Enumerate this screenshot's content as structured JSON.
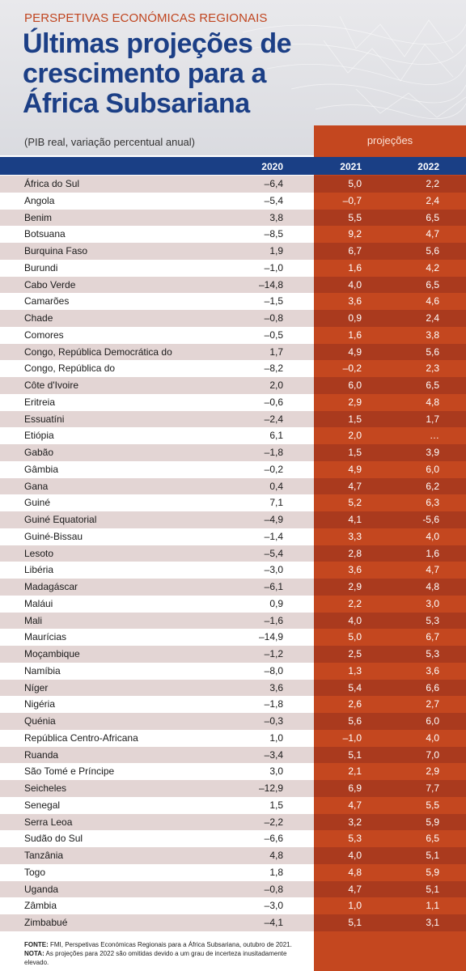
{
  "header": {
    "kicker": "PERSPETIVAS ECONÓMICAS REGIONAIS",
    "title": "Últimas projeções de crescimento para a África Subsariana",
    "subtitle": "(PIB real, variação percentual anual)",
    "projections_label": "projeções"
  },
  "colors": {
    "title_blue": "#1c3f86",
    "kicker_orange": "#c0451f",
    "header_bar": "#1a3f85",
    "projection_orange": "#c4471f",
    "projection_orange_dark": "#aa3a1e",
    "row_stripe": "#e3d5d4"
  },
  "chart_data": {
    "type": "table",
    "title": "Últimas projeções de crescimento para a África Subsariana",
    "subtitle": "(PIB real, variação percentual anual)",
    "columns": [
      "2020",
      "2021",
      "2022"
    ],
    "projection_columns": [
      "2021",
      "2022"
    ],
    "rows": [
      {
        "country": "África do Sul",
        "v2020": "–6,4",
        "v2021": "5,0",
        "v2022": "2,2"
      },
      {
        "country": "Angola",
        "v2020": "–5,4",
        "v2021": "–0,7",
        "v2022": "2,4"
      },
      {
        "country": "Benim",
        "v2020": "3,8",
        "v2021": "5,5",
        "v2022": "6,5"
      },
      {
        "country": "Botsuana",
        "v2020": "–8,5",
        "v2021": "9,2",
        "v2022": "4,7"
      },
      {
        "country": "Burquina Faso",
        "v2020": "1,9",
        "v2021": "6,7",
        "v2022": "5,6"
      },
      {
        "country": "Burundi",
        "v2020": "–1,0",
        "v2021": "1,6",
        "v2022": "4,2"
      },
      {
        "country": "Cabo Verde",
        "v2020": "–14,8",
        "v2021": "4,0",
        "v2022": "6,5"
      },
      {
        "country": "Camarões",
        "v2020": "–1,5",
        "v2021": "3,6",
        "v2022": "4,6"
      },
      {
        "country": "Chade",
        "v2020": "–0,8",
        "v2021": "0,9",
        "v2022": "2,4"
      },
      {
        "country": "Comores",
        "v2020": "–0,5",
        "v2021": "1,6",
        "v2022": "3,8"
      },
      {
        "country": "Congo, República Democrática do",
        "v2020": "1,7",
        "v2021": "4,9",
        "v2022": "5,6"
      },
      {
        "country": "Congo, República do",
        "v2020": "–8,2",
        "v2021": "–0,2",
        "v2022": "2,3"
      },
      {
        "country": "Côte d'Ivoire",
        "v2020": "2,0",
        "v2021": "6,0",
        "v2022": "6,5"
      },
      {
        "country": "Eritreia",
        "v2020": "–0,6",
        "v2021": "2,9",
        "v2022": "4,8"
      },
      {
        "country": "Essuatíni",
        "v2020": "–2,4",
        "v2021": "1,5",
        "v2022": "1,7"
      },
      {
        "country": "Etiópia",
        "v2020": "6,1",
        "v2021": "2,0",
        "v2022": "…"
      },
      {
        "country": "Gabão",
        "v2020": "–1,8",
        "v2021": "1,5",
        "v2022": "3,9"
      },
      {
        "country": "Gâmbia",
        "v2020": "–0,2",
        "v2021": "4,9",
        "v2022": "6,0"
      },
      {
        "country": "Gana",
        "v2020": "0,4",
        "v2021": "4,7",
        "v2022": "6,2"
      },
      {
        "country": "Guiné",
        "v2020": "7,1",
        "v2021": "5,2",
        "v2022": "6,3"
      },
      {
        "country": "Guiné Equatorial",
        "v2020": "–4,9",
        "v2021": "4,1",
        "v2022": "-5,6"
      },
      {
        "country": "Guiné-Bissau",
        "v2020": "–1,4",
        "v2021": "3,3",
        "v2022": "4,0"
      },
      {
        "country": "Lesoto",
        "v2020": "–5,4",
        "v2021": "2,8",
        "v2022": "1,6"
      },
      {
        "country": "Libéria",
        "v2020": "–3,0",
        "v2021": "3,6",
        "v2022": "4,7"
      },
      {
        "country": "Madagáscar",
        "v2020": "–6,1",
        "v2021": "2,9",
        "v2022": "4,8"
      },
      {
        "country": "Maláui",
        "v2020": "0,9",
        "v2021": "2,2",
        "v2022": "3,0"
      },
      {
        "country": "Mali",
        "v2020": "–1,6",
        "v2021": "4,0",
        "v2022": "5,3"
      },
      {
        "country": "Maurícias",
        "v2020": "–14,9",
        "v2021": "5,0",
        "v2022": "6,7"
      },
      {
        "country": "Moçambique",
        "v2020": "–1,2",
        "v2021": "2,5",
        "v2022": "5,3"
      },
      {
        "country": "Namíbia",
        "v2020": "–8,0",
        "v2021": "1,3",
        "v2022": "3,6"
      },
      {
        "country": "Níger",
        "v2020": "3,6",
        "v2021": "5,4",
        "v2022": "6,6"
      },
      {
        "country": "Nigéria",
        "v2020": "–1,8",
        "v2021": "2,6",
        "v2022": "2,7"
      },
      {
        "country": "Quénia",
        "v2020": "–0,3",
        "v2021": "5,6",
        "v2022": "6,0"
      },
      {
        "country": "República Centro-Africana",
        "v2020": "1,0",
        "v2021": "–1,0",
        "v2022": "4,0"
      },
      {
        "country": "Ruanda",
        "v2020": "–3,4",
        "v2021": "5,1",
        "v2022": "7,0"
      },
      {
        "country": "São Tomé e Príncipe",
        "v2020": "3,0",
        "v2021": "2,1",
        "v2022": "2,9"
      },
      {
        "country": "Seicheles",
        "v2020": "–12,9",
        "v2021": "6,9",
        "v2022": "7,7"
      },
      {
        "country": "Senegal",
        "v2020": "1,5",
        "v2021": "4,7",
        "v2022": "5,5"
      },
      {
        "country": "Serra Leoa",
        "v2020": "–2,2",
        "v2021": "3,2",
        "v2022": "5,9"
      },
      {
        "country": "Sudão do Sul",
        "v2020": "–6,6",
        "v2021": "5,3",
        "v2022": "6,5"
      },
      {
        "country": "Tanzânia",
        "v2020": "4,8",
        "v2021": "4,0",
        "v2022": "5,1"
      },
      {
        "country": "Togo",
        "v2020": "1,8",
        "v2021": "4,8",
        "v2022": "5,9"
      },
      {
        "country": "Uganda",
        "v2020": "–0,8",
        "v2021": "4,7",
        "v2022": "5,1"
      },
      {
        "country": "Zâmbia",
        "v2020": "–3,0",
        "v2021": "1,0",
        "v2022": "1,1"
      },
      {
        "country": "Zimbabué",
        "v2020": "–4,1",
        "v2021": "5,1",
        "v2022": "3,1"
      }
    ]
  },
  "footer": {
    "source_label": "FONTE:",
    "source_text": " FMI, Perspetivas Económicas Regionais para a África Subsariana, outubro de 2021.",
    "note_label": "NOTA:",
    "note_text": " As projeções para 2022 são omitidas devido a um grau de incerteza inusitadamente elevado."
  }
}
